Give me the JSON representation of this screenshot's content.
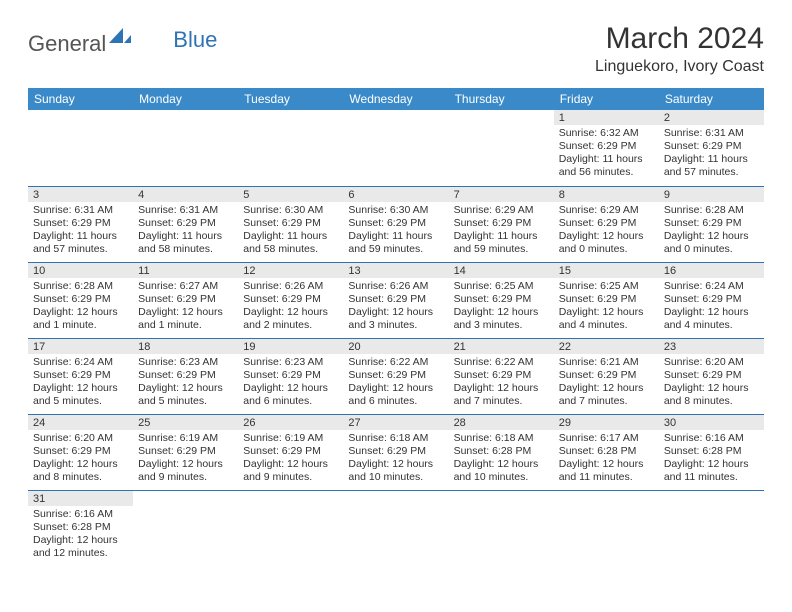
{
  "logo": {
    "general": "General",
    "blue": "Blue"
  },
  "header": {
    "title": "March 2024",
    "location": "Linguekoro, Ivory Coast"
  },
  "colors": {
    "header_bg": "#3a8ac9",
    "header_text": "#ffffff",
    "daynum_bg": "#e9e9e9",
    "border": "#2e74b5",
    "logo_blue": "#2e74b5",
    "text": "#333333"
  },
  "week_days": [
    "Sunday",
    "Monday",
    "Tuesday",
    "Wednesday",
    "Thursday",
    "Friday",
    "Saturday"
  ],
  "cells": [
    [
      null,
      null,
      null,
      null,
      null,
      {
        "n": "1",
        "sr": "Sunrise: 6:32 AM",
        "ss": "Sunset: 6:29 PM",
        "dl": "Daylight: 11 hours and 56 minutes."
      },
      {
        "n": "2",
        "sr": "Sunrise: 6:31 AM",
        "ss": "Sunset: 6:29 PM",
        "dl": "Daylight: 11 hours and 57 minutes."
      }
    ],
    [
      {
        "n": "3",
        "sr": "Sunrise: 6:31 AM",
        "ss": "Sunset: 6:29 PM",
        "dl": "Daylight: 11 hours and 57 minutes."
      },
      {
        "n": "4",
        "sr": "Sunrise: 6:31 AM",
        "ss": "Sunset: 6:29 PM",
        "dl": "Daylight: 11 hours and 58 minutes."
      },
      {
        "n": "5",
        "sr": "Sunrise: 6:30 AM",
        "ss": "Sunset: 6:29 PM",
        "dl": "Daylight: 11 hours and 58 minutes."
      },
      {
        "n": "6",
        "sr": "Sunrise: 6:30 AM",
        "ss": "Sunset: 6:29 PM",
        "dl": "Daylight: 11 hours and 59 minutes."
      },
      {
        "n": "7",
        "sr": "Sunrise: 6:29 AM",
        "ss": "Sunset: 6:29 PM",
        "dl": "Daylight: 11 hours and 59 minutes."
      },
      {
        "n": "8",
        "sr": "Sunrise: 6:29 AM",
        "ss": "Sunset: 6:29 PM",
        "dl": "Daylight: 12 hours and 0 minutes."
      },
      {
        "n": "9",
        "sr": "Sunrise: 6:28 AM",
        "ss": "Sunset: 6:29 PM",
        "dl": "Daylight: 12 hours and 0 minutes."
      }
    ],
    [
      {
        "n": "10",
        "sr": "Sunrise: 6:28 AM",
        "ss": "Sunset: 6:29 PM",
        "dl": "Daylight: 12 hours and 1 minute."
      },
      {
        "n": "11",
        "sr": "Sunrise: 6:27 AM",
        "ss": "Sunset: 6:29 PM",
        "dl": "Daylight: 12 hours and 1 minute."
      },
      {
        "n": "12",
        "sr": "Sunrise: 6:26 AM",
        "ss": "Sunset: 6:29 PM",
        "dl": "Daylight: 12 hours and 2 minutes."
      },
      {
        "n": "13",
        "sr": "Sunrise: 6:26 AM",
        "ss": "Sunset: 6:29 PM",
        "dl": "Daylight: 12 hours and 3 minutes."
      },
      {
        "n": "14",
        "sr": "Sunrise: 6:25 AM",
        "ss": "Sunset: 6:29 PM",
        "dl": "Daylight: 12 hours and 3 minutes."
      },
      {
        "n": "15",
        "sr": "Sunrise: 6:25 AM",
        "ss": "Sunset: 6:29 PM",
        "dl": "Daylight: 12 hours and 4 minutes."
      },
      {
        "n": "16",
        "sr": "Sunrise: 6:24 AM",
        "ss": "Sunset: 6:29 PM",
        "dl": "Daylight: 12 hours and 4 minutes."
      }
    ],
    [
      {
        "n": "17",
        "sr": "Sunrise: 6:24 AM",
        "ss": "Sunset: 6:29 PM",
        "dl": "Daylight: 12 hours and 5 minutes."
      },
      {
        "n": "18",
        "sr": "Sunrise: 6:23 AM",
        "ss": "Sunset: 6:29 PM",
        "dl": "Daylight: 12 hours and 5 minutes."
      },
      {
        "n": "19",
        "sr": "Sunrise: 6:23 AM",
        "ss": "Sunset: 6:29 PM",
        "dl": "Daylight: 12 hours and 6 minutes."
      },
      {
        "n": "20",
        "sr": "Sunrise: 6:22 AM",
        "ss": "Sunset: 6:29 PM",
        "dl": "Daylight: 12 hours and 6 minutes."
      },
      {
        "n": "21",
        "sr": "Sunrise: 6:22 AM",
        "ss": "Sunset: 6:29 PM",
        "dl": "Daylight: 12 hours and 7 minutes."
      },
      {
        "n": "22",
        "sr": "Sunrise: 6:21 AM",
        "ss": "Sunset: 6:29 PM",
        "dl": "Daylight: 12 hours and 7 minutes."
      },
      {
        "n": "23",
        "sr": "Sunrise: 6:20 AM",
        "ss": "Sunset: 6:29 PM",
        "dl": "Daylight: 12 hours and 8 minutes."
      }
    ],
    [
      {
        "n": "24",
        "sr": "Sunrise: 6:20 AM",
        "ss": "Sunset: 6:29 PM",
        "dl": "Daylight: 12 hours and 8 minutes."
      },
      {
        "n": "25",
        "sr": "Sunrise: 6:19 AM",
        "ss": "Sunset: 6:29 PM",
        "dl": "Daylight: 12 hours and 9 minutes."
      },
      {
        "n": "26",
        "sr": "Sunrise: 6:19 AM",
        "ss": "Sunset: 6:29 PM",
        "dl": "Daylight: 12 hours and 9 minutes."
      },
      {
        "n": "27",
        "sr": "Sunrise: 6:18 AM",
        "ss": "Sunset: 6:29 PM",
        "dl": "Daylight: 12 hours and 10 minutes."
      },
      {
        "n": "28",
        "sr": "Sunrise: 6:18 AM",
        "ss": "Sunset: 6:28 PM",
        "dl": "Daylight: 12 hours and 10 minutes."
      },
      {
        "n": "29",
        "sr": "Sunrise: 6:17 AM",
        "ss": "Sunset: 6:28 PM",
        "dl": "Daylight: 12 hours and 11 minutes."
      },
      {
        "n": "30",
        "sr": "Sunrise: 6:16 AM",
        "ss": "Sunset: 6:28 PM",
        "dl": "Daylight: 12 hours and 11 minutes."
      }
    ],
    [
      {
        "n": "31",
        "sr": "Sunrise: 6:16 AM",
        "ss": "Sunset: 6:28 PM",
        "dl": "Daylight: 12 hours and 12 minutes."
      },
      null,
      null,
      null,
      null,
      null,
      null
    ]
  ]
}
